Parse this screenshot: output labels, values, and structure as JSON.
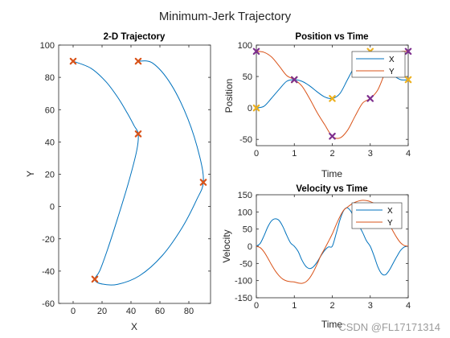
{
  "figure": {
    "title": "Minimum-Jerk Trajectory",
    "watermark": "CSDN @FL17171314"
  },
  "colors": {
    "series_x": "#0072BD",
    "series_y": "#D95319",
    "marker_orange": "#D95319",
    "marker_yellow": "#EDB120",
    "marker_purple": "#7E2F8E"
  },
  "chart_data": [
    {
      "id": "traj",
      "type": "line",
      "title": "2-D Trajectory",
      "xlabel": "X",
      "ylabel": "Y",
      "xlim": [
        -10,
        95
      ],
      "ylim": [
        -60,
        100
      ],
      "xticks": [
        0,
        20,
        40,
        60,
        80
      ],
      "yticks": [
        -60,
        -40,
        -20,
        0,
        20,
        40,
        60,
        80,
        100
      ],
      "grid": false,
      "series": [
        {
          "x": [
            0,
            12.4,
            22.6,
            31.0,
            37.6,
            42.2,
            45.0,
            44.0,
            38.4,
            30.8,
            23.8,
            18.4,
            15.0,
            19.0,
            30.6,
            46.0,
            61.6,
            75.4,
            85.4,
            90.0,
            87.6,
            79.4,
            67.6,
            55.0,
            45.0
          ],
          "y": [
            90,
            85.6,
            77.4,
            67.4,
            57.6,
            50.0,
            45.0,
            34.8,
            15.2,
            -7.2,
            -26.6,
            -39.8,
            -45.0,
            -47.8,
            -48.2,
            -42.8,
            -30.4,
            -13.0,
            4.2,
            15.0,
            30.6,
            54.2,
            75.8,
            88.8,
            90.0
          ]
        }
      ],
      "markers": [
        {
          "x": 0,
          "y": 90
        },
        {
          "x": 45,
          "y": 45
        },
        {
          "x": 15,
          "y": -45
        },
        {
          "x": 90,
          "y": 15
        },
        {
          "x": 45,
          "y": 90
        }
      ]
    },
    {
      "id": "pos",
      "type": "line",
      "title": "Position vs Time",
      "xlabel": "Time",
      "ylabel": "Position",
      "xlim": [
        0,
        4
      ],
      "ylim": [
        -60,
        100
      ],
      "xticks": [
        0,
        1,
        2,
        3,
        4
      ],
      "yticks": [
        -50,
        0,
        50,
        100
      ],
      "legend": "top-right",
      "grid": false,
      "series": [
        {
          "name": "X",
          "x": [
            0,
            0.2,
            0.4,
            0.6,
            0.8,
            1.0,
            1.2,
            1.4,
            1.6,
            1.8,
            2.0,
            2.2,
            2.4,
            2.6,
            2.8,
            3.0,
            3.2,
            3.4,
            3.6,
            3.8,
            4.0
          ],
          "y": [
            0,
            2.6,
            15.5,
            29.5,
            42.4,
            45,
            42.4,
            35.3,
            25.7,
            17.5,
            15,
            22.8,
            45,
            67.2,
            82.2,
            90,
            82.2,
            67.2,
            52.8,
            45,
            45
          ]
        },
        {
          "name": "Y",
          "x": [
            0,
            0.2,
            0.4,
            0.6,
            0.8,
            1.0,
            1.2,
            1.4,
            1.6,
            1.8,
            2.0,
            2.2,
            2.4,
            2.6,
            2.8,
            3.0,
            3.2,
            3.4,
            3.6,
            3.8,
            4.0
          ],
          "y": [
            90,
            88.6,
            81.1,
            66.8,
            51.5,
            45,
            34.8,
            15.2,
            -7.2,
            -26.6,
            -45,
            -47.8,
            -35.8,
            -13.2,
            7.8,
            15,
            28.8,
            57.6,
            81.9,
            89.3,
            90
          ]
        }
      ],
      "markers": [
        {
          "x": 0,
          "y": 0,
          "color": "marker_yellow"
        },
        {
          "x": 1,
          "y": 45,
          "color": "marker_yellow"
        },
        {
          "x": 2,
          "y": 15,
          "color": "marker_yellow"
        },
        {
          "x": 3,
          "y": 90,
          "color": "marker_yellow"
        },
        {
          "x": 4,
          "y": 45,
          "color": "marker_yellow"
        },
        {
          "x": 0,
          "y": 90,
          "color": "marker_purple"
        },
        {
          "x": 1,
          "y": 45,
          "color": "marker_purple"
        },
        {
          "x": 2,
          "y": -45,
          "color": "marker_purple"
        },
        {
          "x": 3,
          "y": 15,
          "color": "marker_purple"
        },
        {
          "x": 4,
          "y": 90,
          "color": "marker_purple"
        }
      ]
    },
    {
      "id": "vel",
      "type": "line",
      "title": "Velocity vs Time",
      "xlabel": "Time",
      "ylabel": "Velocity",
      "xlim": [
        0,
        4
      ],
      "ylim": [
        -150,
        150
      ],
      "xticks": [
        0,
        1,
        2,
        3,
        4
      ],
      "yticks": [
        -150,
        -100,
        -50,
        0,
        50,
        100,
        150
      ],
      "legend": "top-right",
      "grid": false,
      "series": [
        {
          "name": "X",
          "x": [
            0,
            0.1,
            0.2,
            0.3,
            0.4,
            0.5,
            0.6,
            0.7,
            0.8,
            0.9,
            1.0,
            1.1,
            1.2,
            1.3,
            1.4,
            1.5,
            1.6,
            1.7,
            1.8,
            1.9,
            2.0,
            2.1,
            2.2,
            2.3,
            2.4,
            2.5,
            2.6,
            2.7,
            2.8,
            2.9,
            3.0,
            3.1,
            3.2,
            3.3,
            3.4,
            3.5,
            3.6,
            3.7,
            3.8,
            3.9,
            4.0
          ],
          "y": [
            0,
            8,
            30,
            56,
            74,
            80,
            75,
            57,
            32,
            10,
            0,
            -15,
            -40,
            -58,
            -65,
            -60,
            -46,
            -28,
            -12,
            -2,
            0,
            36,
            76,
            104,
            112,
            100,
            78,
            60,
            40,
            16,
            0,
            -28,
            -60,
            -80,
            -83,
            -70,
            -50,
            -30,
            -12,
            -2,
            0
          ]
        },
        {
          "name": "Y",
          "x": [
            0,
            0.1,
            0.2,
            0.3,
            0.4,
            0.5,
            0.6,
            0.7,
            0.8,
            0.9,
            1.0,
            1.1,
            1.2,
            1.3,
            1.4,
            1.5,
            1.6,
            1.7,
            1.8,
            1.9,
            2.0,
            2.1,
            2.2,
            2.3,
            2.4,
            2.5,
            2.6,
            2.7,
            2.8,
            2.9,
            3.0,
            3.1,
            3.2,
            3.3,
            3.4,
            3.5,
            3.6,
            3.7,
            3.8,
            3.9,
            4.0
          ],
          "y": [
            0,
            -4,
            -16,
            -34,
            -54,
            -72,
            -86,
            -96,
            -101,
            -103,
            -104,
            -107,
            -108,
            -104,
            -93,
            -75,
            -52,
            -27,
            -7,
            14,
            36,
            62,
            86,
            105,
            114,
            122,
            128,
            132,
            134,
            133,
            130,
            125,
            116,
            102,
            84,
            64,
            44,
            25,
            10,
            2,
            0
          ]
        }
      ]
    }
  ]
}
